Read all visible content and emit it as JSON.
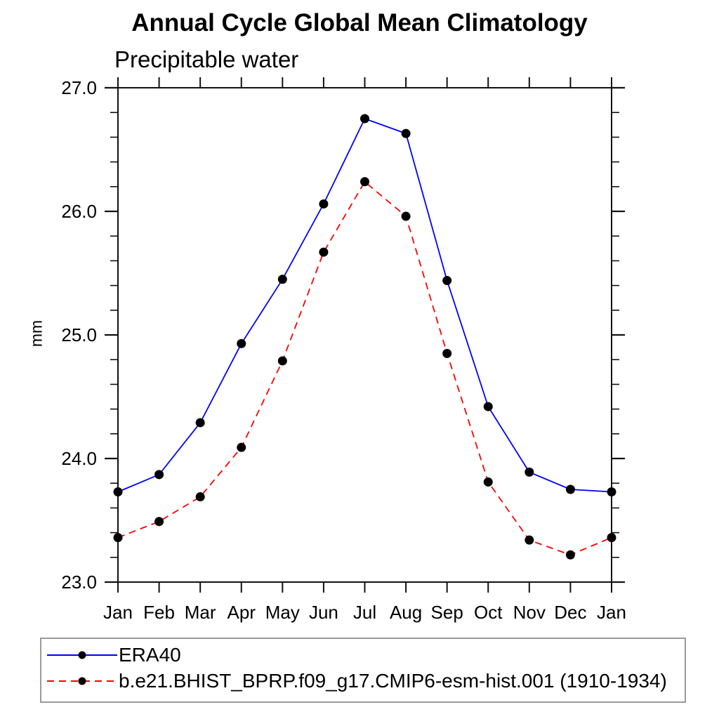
{
  "title": "Annual Cycle Global Mean Climatology",
  "subtitle": "Precipitable water",
  "ylabel": "mm",
  "chart_data": {
    "type": "line",
    "categories": [
      "Jan",
      "Feb",
      "Mar",
      "Apr",
      "May",
      "Jun",
      "Jul",
      "Aug",
      "Sep",
      "Oct",
      "Nov",
      "Dec",
      "Jan"
    ],
    "series": [
      {
        "name": "ERA40",
        "color": "#0000ff",
        "line_style": "solid",
        "marker": "filled-circle",
        "marker_color": "#000000",
        "values": [
          23.73,
          23.87,
          24.29,
          24.93,
          25.45,
          26.06,
          26.75,
          26.63,
          25.44,
          24.42,
          23.89,
          23.75,
          23.73
        ]
      },
      {
        "name": "b.e21.BHIST_BPRP.f09_g17.CMIP6-esm-hist.001 (1910-1934)",
        "color": "#ff0000",
        "line_style": "dashed",
        "marker": "filled-circle",
        "marker_color": "#000000",
        "values": [
          23.36,
          23.49,
          23.69,
          24.09,
          24.79,
          25.67,
          26.24,
          25.96,
          24.85,
          23.81,
          23.34,
          23.22,
          23.36
        ]
      }
    ],
    "xlabel": "",
    "ylabel": "mm",
    "ylim": [
      23.0,
      27.0
    ],
    "yticks": [
      "23.0",
      "24.0",
      "25.0",
      "26.0",
      "27.0"
    ],
    "y_minor_interval": 0.2,
    "grid": false,
    "legend_position": "bottom",
    "axis_color": "#111111",
    "legend_border_color": "#9a9a9a",
    "background_color": "#ffffff"
  }
}
